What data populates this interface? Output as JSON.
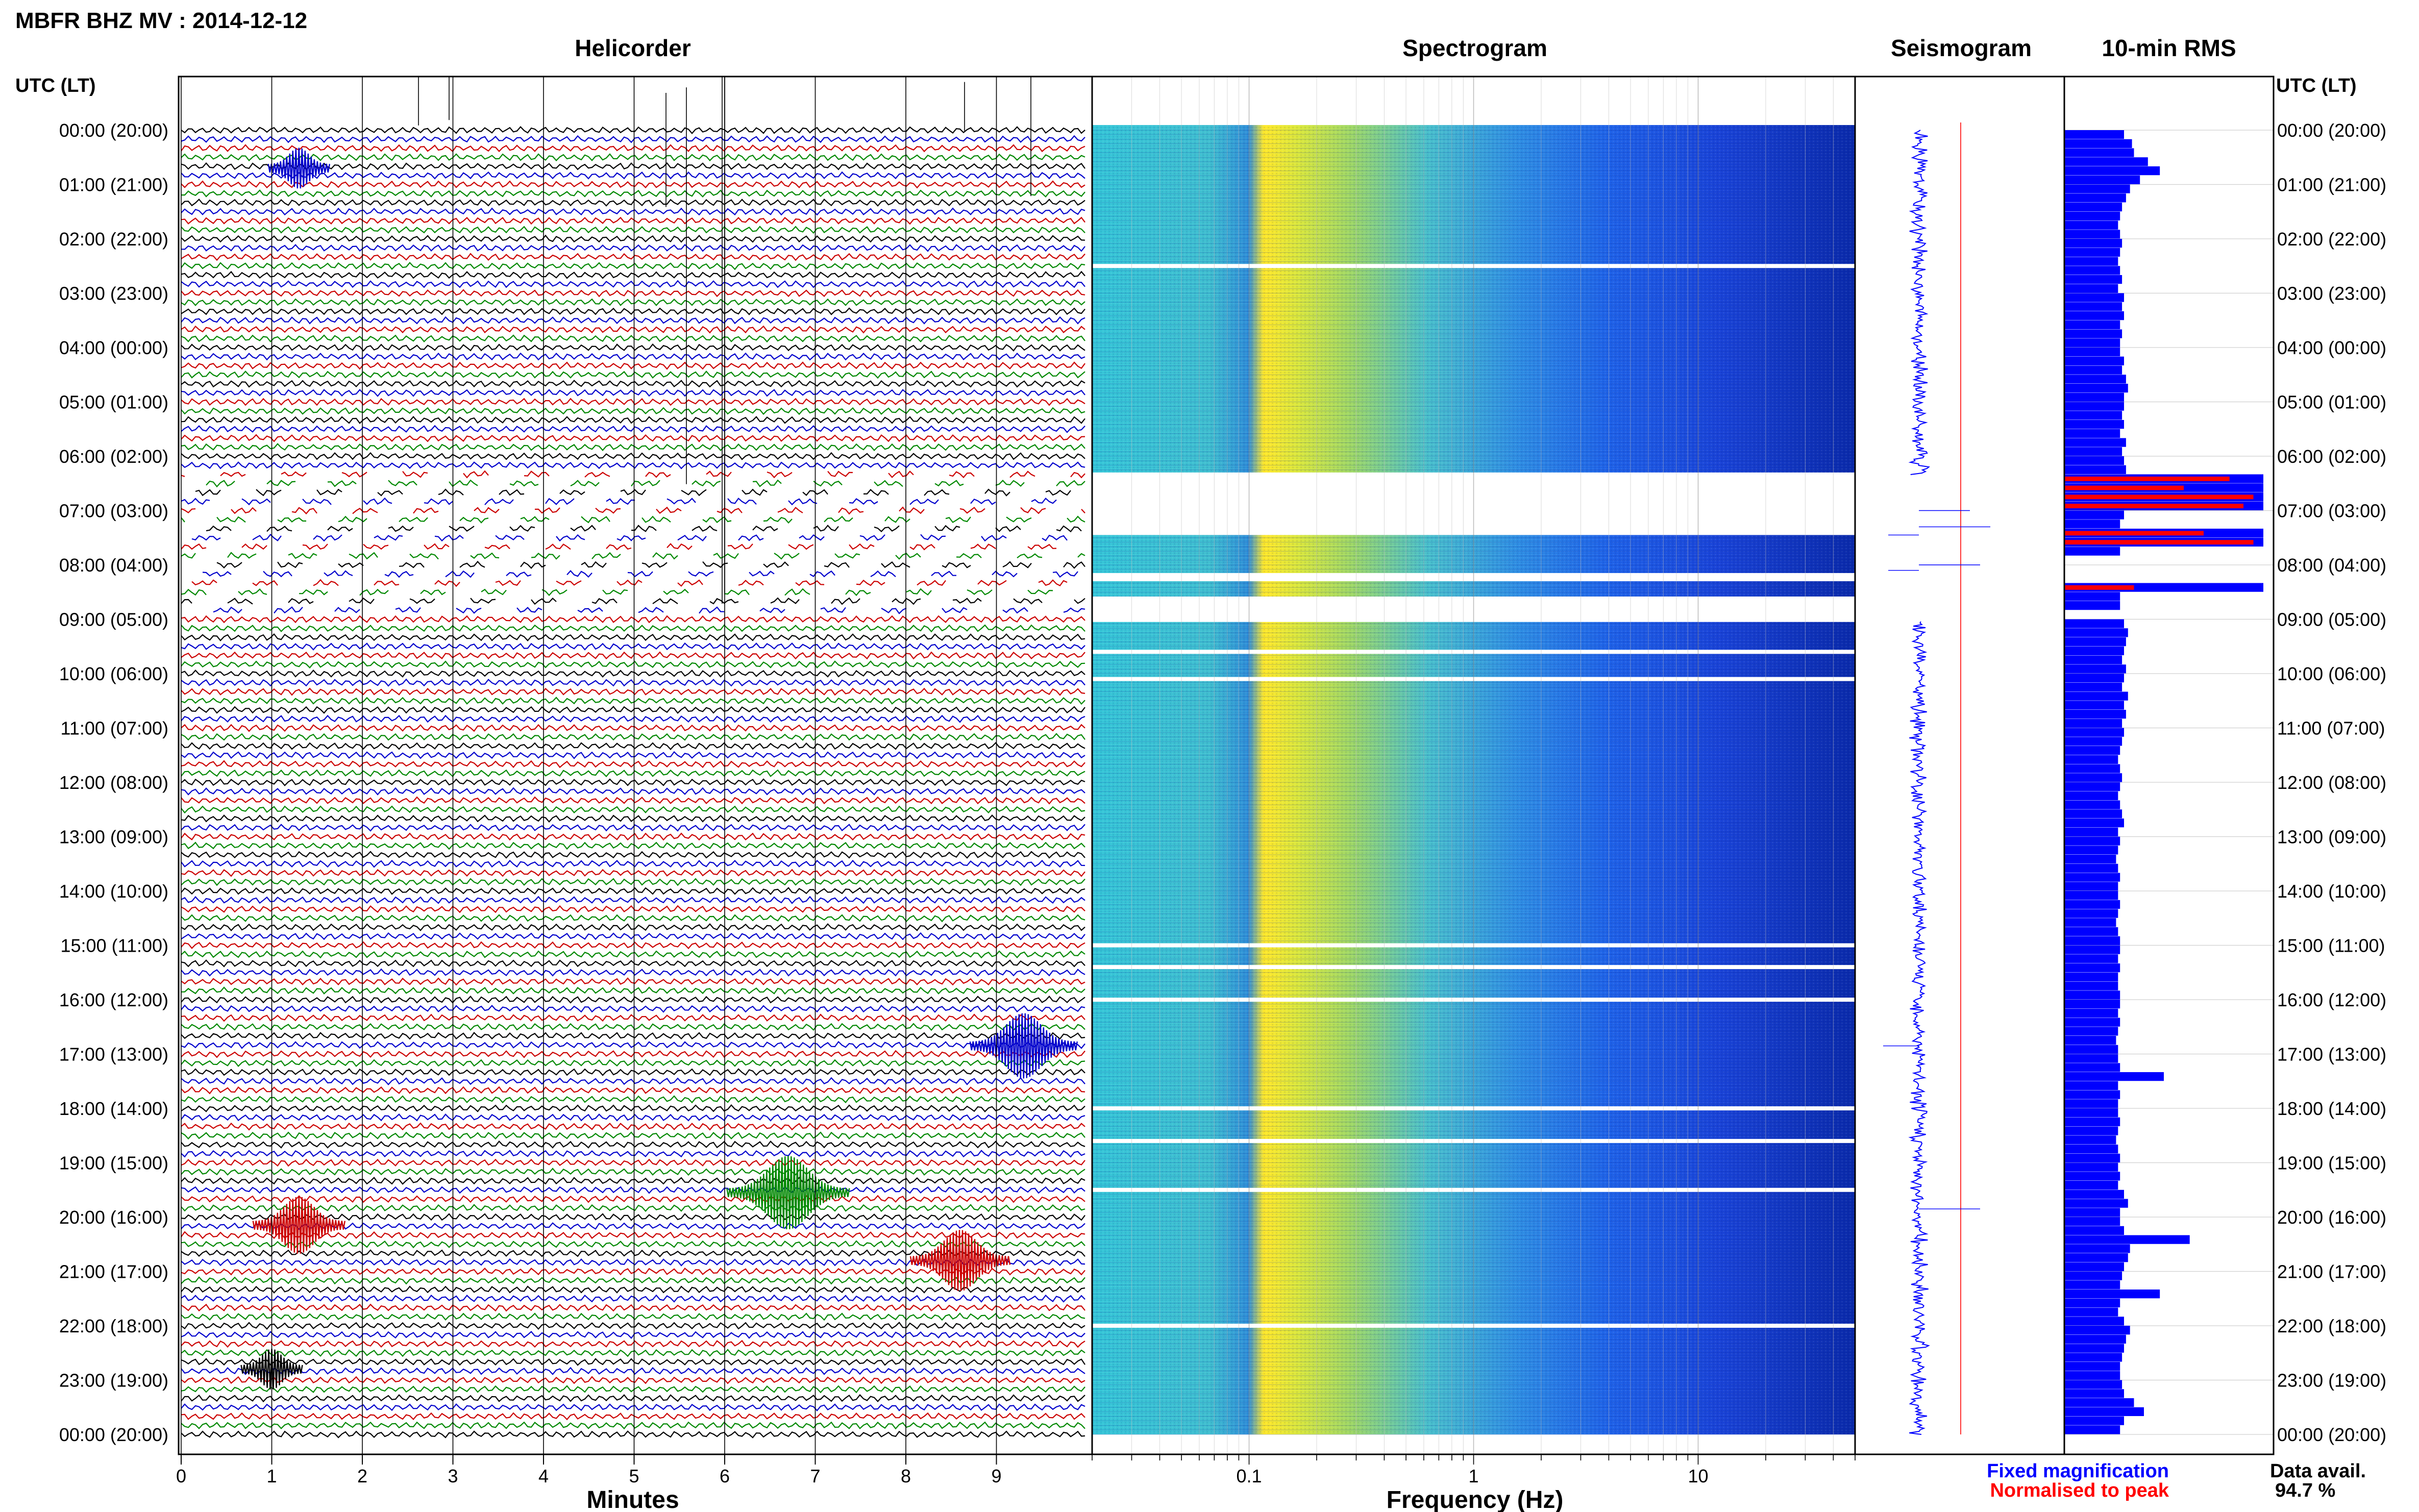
{
  "header": {
    "station_title": "MBFR BHZ MV : 2014-12-12",
    "utc_label_left": "UTC (LT)",
    "utc_label_right": "UTC (LT)"
  },
  "panels": {
    "helicorder": "Helicorder",
    "spectrogram": "Spectrogram",
    "seismogram": "Seismogram",
    "rms": "10-min RMS"
  },
  "time_labels": [
    "00:00 (20:00)",
    "01:00 (21:00)",
    "02:00 (22:00)",
    "03:00 (23:00)",
    "04:00 (00:00)",
    "05:00 (01:00)",
    "06:00 (02:00)",
    "07:00 (03:00)",
    "08:00 (04:00)",
    "09:00 (05:00)",
    "10:00 (06:00)",
    "11:00 (07:00)",
    "12:00 (08:00)",
    "13:00 (09:00)",
    "14:00 (10:00)",
    "15:00 (11:00)",
    "16:00 (12:00)",
    "17:00 (13:00)",
    "18:00 (14:00)",
    "19:00 (15:00)",
    "20:00 (16:00)",
    "21:00 (17:00)",
    "22:00 (18:00)",
    "23:00 (19:00)",
    "00:00 (20:00)"
  ],
  "footer": {
    "minutes_label": "Minutes",
    "frequency_label": "Frequency (Hz)",
    "legend_fixed": "Fixed magnification",
    "legend_normalised": "Normalised to peak",
    "data_avail_label": "Data avail.",
    "data_avail_value": "94.7 %"
  },
  "colors": {
    "fixed": "#0000ff",
    "normalised": "#ff0000",
    "trace_cycle": [
      "#000000",
      "#0000cc",
      "#cc0000",
      "#008800"
    ]
  },
  "chart_data": [
    {
      "type": "line",
      "title": "Helicorder",
      "xlabel": "Minutes",
      "ylabel": "UTC (LT)",
      "x_ticks": [
        0,
        1,
        2,
        3,
        4,
        5,
        6,
        7,
        8,
        9
      ],
      "xlim": [
        0,
        10
      ],
      "rows_per_hour": 6,
      "row_minutes": 10,
      "gap_hours": [
        6.3,
        9.0
      ],
      "events": [
        {
          "hour": 19.55,
          "minute": 6.7,
          "color": "#008800",
          "amp": 1.6
        },
        {
          "hour": 16.85,
          "minute": 9.3,
          "color": "#0000cc",
          "amp": 1.4
        },
        {
          "hour": 20.15,
          "minute": 1.3,
          "color": "#cc0000",
          "amp": 1.2
        },
        {
          "hour": 20.8,
          "minute": 8.6,
          "color": "#cc0000",
          "amp": 1.3
        },
        {
          "hour": 0.7,
          "minute": 1.3,
          "color": "#0000cc",
          "amp": 0.8
        },
        {
          "hour": 22.8,
          "minute": 1.0,
          "color": "#000000",
          "amp": 0.8
        }
      ]
    },
    {
      "type": "heatmap",
      "title": "Spectrogram",
      "xlabel": "Frequency (Hz)",
      "x_scale": "log",
      "xlim": [
        0.02,
        50
      ],
      "x_ticks": [
        0.1,
        1,
        10
      ],
      "gap_hours": [
        6.3,
        7.45,
        8.15,
        8.3,
        9.05
      ],
      "white_lines_hours": [
        2.5,
        9.6,
        10.1,
        15.0,
        15.4,
        16.0,
        18.0,
        18.6,
        19.5,
        22.0
      ]
    },
    {
      "type": "line",
      "title": "Seismogram",
      "series": [
        {
          "name": "Fixed magnification",
          "color": "#0000ff"
        },
        {
          "name": "Normalised to peak",
          "color": "#ff0000"
        }
      ]
    },
    {
      "type": "bar",
      "title": "10-min RMS",
      "orientation": "horizontal",
      "interval_minutes": 10,
      "fixed_magnification": [
        0.3,
        0.34,
        0.35,
        0.42,
        0.48,
        0.38,
        0.33,
        0.31,
        0.29,
        0.28,
        0.27,
        0.28,
        0.29,
        0.28,
        0.27,
        0.28,
        0.29,
        0.27,
        0.3,
        0.29,
        0.3,
        0.28,
        0.29,
        0.28,
        0.28,
        0.3,
        0.29,
        0.31,
        0.32,
        0.3,
        0.3,
        0.29,
        0.3,
        0.28,
        0.31,
        0.29,
        0.3,
        0.31,
        1.0,
        1.0,
        1.0,
        1.0,
        0.3,
        0.28,
        1.0,
        1.0,
        0.28,
        0.0,
        0.0,
        0.0,
        1.0,
        0.28,
        0.28,
        0.0,
        0.3,
        0.32,
        0.31,
        0.3,
        0.29,
        0.31,
        0.3,
        0.29,
        0.32,
        0.3,
        0.31,
        0.29,
        0.3,
        0.29,
        0.28,
        0.27,
        0.28,
        0.29,
        0.28,
        0.27,
        0.28,
        0.29,
        0.3,
        0.27,
        0.28,
        0.27,
        0.26,
        0.27,
        0.28,
        0.27,
        0.27,
        0.28,
        0.27,
        0.26,
        0.27,
        0.28,
        0.28,
        0.27,
        0.28,
        0.27,
        0.27,
        0.28,
        0.28,
        0.27,
        0.28,
        0.27,
        0.26,
        0.27,
        0.27,
        0.28,
        0.5,
        0.27,
        0.28,
        0.27,
        0.27,
        0.28,
        0.27,
        0.26,
        0.27,
        0.28,
        0.27,
        0.28,
        0.27,
        0.3,
        0.32,
        0.28,
        0.28,
        0.3,
        0.63,
        0.33,
        0.32,
        0.3,
        0.29,
        0.28,
        0.48,
        0.28,
        0.27,
        0.3,
        0.33,
        0.31,
        0.3,
        0.29,
        0.28,
        0.28,
        0.29,
        0.3,
        0.35,
        0.4,
        0.3,
        0.28
      ],
      "normalised_to_peak": [
        0,
        0,
        0,
        0,
        0,
        0,
        0,
        0,
        0,
        0,
        0,
        0,
        0,
        0,
        0,
        0,
        0,
        0,
        0,
        0,
        0,
        0,
        0,
        0,
        0,
        0,
        0,
        0,
        0,
        0,
        0,
        0,
        0,
        0,
        0,
        0,
        0,
        0,
        0.83,
        0.6,
        0.95,
        0.9,
        0,
        0,
        0.7,
        0.95,
        0,
        0,
        0,
        0,
        0.35,
        0,
        0,
        0,
        0,
        0,
        0,
        0,
        0,
        0,
        0,
        0,
        0,
        0,
        0,
        0,
        0,
        0,
        0,
        0,
        0,
        0,
        0,
        0,
        0,
        0,
        0,
        0,
        0,
        0,
        0,
        0,
        0,
        0,
        0,
        0,
        0,
        0,
        0,
        0,
        0,
        0,
        0,
        0,
        0,
        0,
        0,
        0,
        0,
        0,
        0,
        0,
        0,
        0,
        0,
        0,
        0,
        0,
        0,
        0,
        0,
        0,
        0,
        0,
        0,
        0,
        0,
        0,
        0,
        0,
        0,
        0,
        0,
        0,
        0,
        0,
        0,
        0,
        0,
        0,
        0,
        0,
        0,
        0,
        0,
        0,
        0,
        0
      ]
    }
  ]
}
